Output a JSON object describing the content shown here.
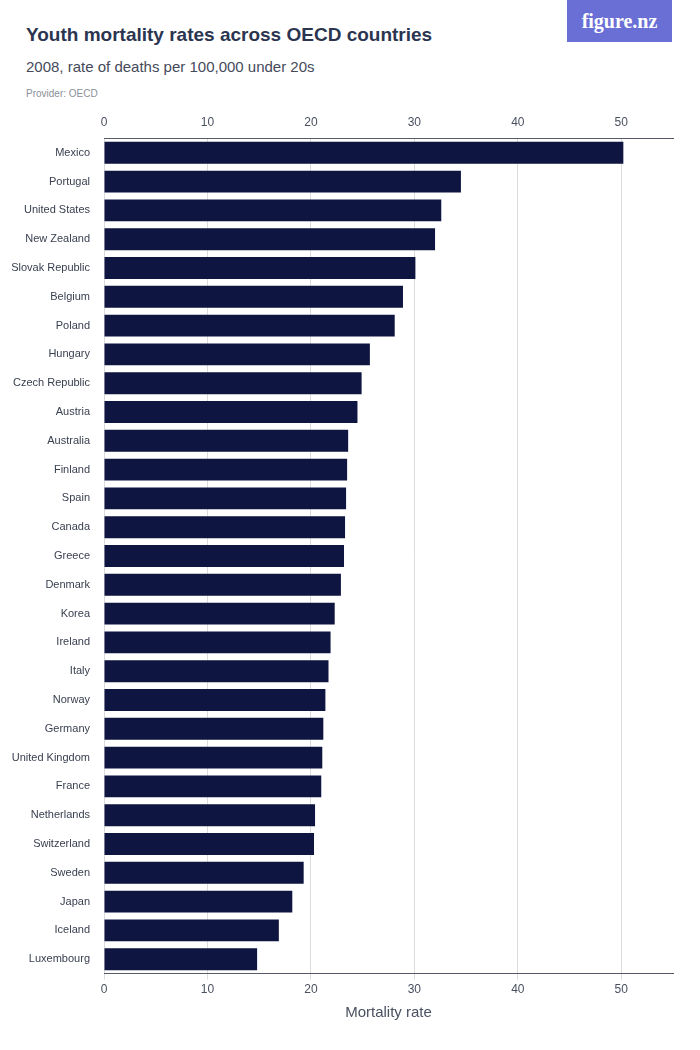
{
  "chart_data": {
    "type": "bar",
    "orientation": "horizontal",
    "title": "Youth mortality rates across OECD countries",
    "subtitle": "2008, rate of deaths per 100,000 under 20s",
    "source": "Provider: OECD",
    "logo": "figure.nz",
    "x_label": "Mortality rate",
    "categories": [
      "Mexico",
      "Portugal",
      "United States",
      "New Zealand",
      "Slovak Republic",
      "Belgium",
      "Poland",
      "Hungary",
      "Czech Republic",
      "Austria",
      "Australia",
      "Finland",
      "Spain",
      "Canada",
      "Greece",
      "Denmark",
      "Korea",
      "Ireland",
      "Italy",
      "Norway",
      "Germany",
      "United Kingdom",
      "France",
      "Netherlands",
      "Switzerland",
      "Sweden",
      "Japan",
      "Iceland",
      "Luxembourg"
    ],
    "values": [
      50.2,
      34.5,
      32.6,
      32.0,
      30.1,
      28.9,
      28.1,
      25.7,
      24.9,
      24.5,
      23.6,
      23.5,
      23.4,
      23.3,
      23.2,
      22.9,
      22.3,
      21.9,
      21.7,
      21.4,
      21.2,
      21.1,
      21.0,
      20.4,
      20.3,
      19.3,
      18.2,
      16.9,
      14.8
    ],
    "color": "#0e1540",
    "xlim": [
      0,
      55
    ],
    "xticks": [
      0,
      10,
      20,
      30,
      40,
      50
    ],
    "grid": true,
    "legend": false,
    "data_labels": false
  }
}
